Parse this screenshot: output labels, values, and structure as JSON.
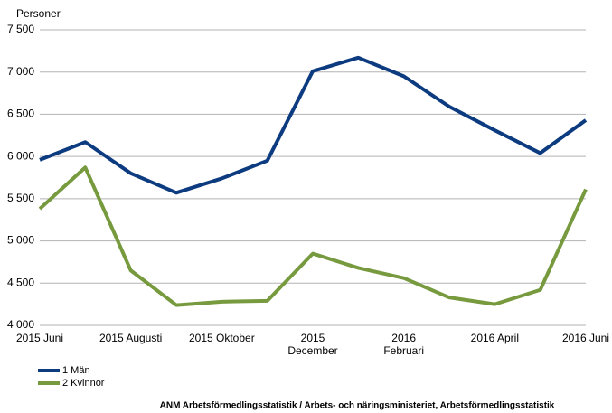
{
  "chart_data": {
    "type": "line",
    "y_label": "Personer",
    "categories": [
      "2015 Juni",
      null,
      "2015 Augusti",
      null,
      "2015 Oktober",
      null,
      "2015\nDecember",
      null,
      "2016\nFebruari",
      null,
      "2016 April",
      null,
      "2016 Juni"
    ],
    "series": [
      {
        "name": "1 Män",
        "color": "#0d3b80",
        "values": [
          5960,
          6170,
          5800,
          5570,
          5740,
          5950,
          7010,
          7170,
          6950,
          6590,
          6310,
          6040,
          6430
        ]
      },
      {
        "name": "2 Kvinnor",
        "color": "#779a3f",
        "values": [
          5380,
          5870,
          4650,
          4240,
          4280,
          4290,
          4850,
          4680,
          4560,
          4330,
          4250,
          4420,
          5610
        ]
      }
    ],
    "ylim": [
      4000,
      7500
    ],
    "yticks": [
      {
        "value": 4000,
        "label": "4 000"
      },
      {
        "value": 4500,
        "label": "4 500"
      },
      {
        "value": 5000,
        "label": "5 000"
      },
      {
        "value": 5500,
        "label": "5 500"
      },
      {
        "value": 6000,
        "label": "6 000"
      },
      {
        "value": 6500,
        "label": "6 500"
      },
      {
        "value": 7000,
        "label": "7 000"
      },
      {
        "value": 7500,
        "label": "7 500"
      }
    ],
    "grid": true,
    "legend": "bottom-left",
    "note": "ANM Arbetsförmedlingsstatistik / Arbets- och näringsministeriet, Arbetsförmedlingsstatistik"
  }
}
